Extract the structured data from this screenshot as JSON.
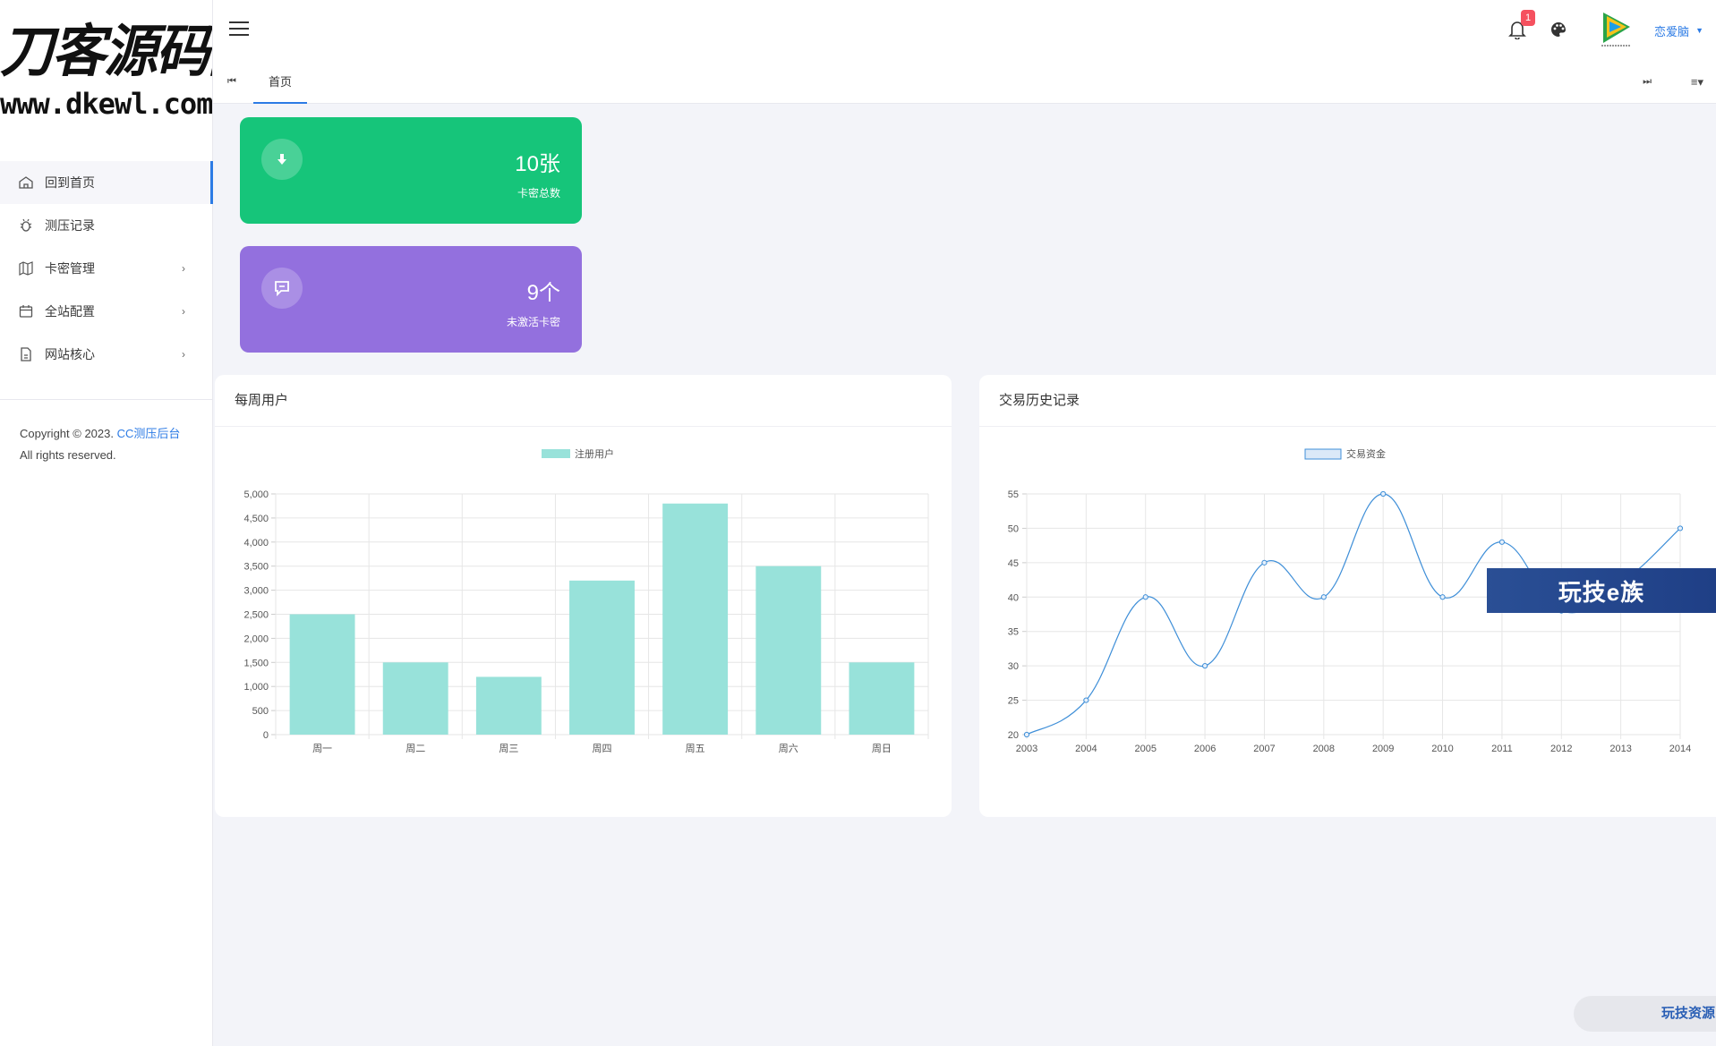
{
  "brand": {
    "name_cn": "刀客源码网",
    "url": "www.dkewl.com"
  },
  "sidebar": {
    "items": [
      {
        "label": "回到首页",
        "icon": "home-icon",
        "active": true,
        "has_arrow": false
      },
      {
        "label": "测压记录",
        "icon": "bug-icon",
        "active": false,
        "has_arrow": false
      },
      {
        "label": "卡密管理",
        "icon": "map-icon",
        "active": false,
        "has_arrow": true
      },
      {
        "label": "全站配置",
        "icon": "calendar-icon",
        "active": false,
        "has_arrow": true
      },
      {
        "label": "网站核心",
        "icon": "file-icon",
        "active": false,
        "has_arrow": true
      }
    ],
    "arrow": "›",
    "copyright_prefix": "Copyright © 2023. ",
    "copyright_link": "CC测压后台",
    "copyright_suffix": "All rights reserved."
  },
  "topbar": {
    "notification_count": "1",
    "user_name": "恋爱脑",
    "caret": "▼"
  },
  "tabs": {
    "first_icon": "⏮",
    "home": "首页",
    "last_icon": "⏭",
    "menu_icon": "≡▾"
  },
  "stats": {
    "total": {
      "value": "10张",
      "label": "卡密总数",
      "color": "#16c57a"
    },
    "inactive": {
      "value": "9个",
      "label": "未激活卡密",
      "color": "#9370de"
    }
  },
  "panels": {
    "weekly_title": "每周用户",
    "history_title": "交易历史记录"
  },
  "chart_data": [
    {
      "type": "bar",
      "categories": [
        "周一",
        "周二",
        "周三",
        "周四",
        "周五",
        "周六",
        "周日"
      ],
      "series": [
        {
          "name": "注册用户",
          "values": [
            2500,
            1500,
            1200,
            3200,
            4800,
            3500,
            1500
          ]
        }
      ],
      "ylim": [
        0,
        5000
      ],
      "yticks": [
        "0",
        "500",
        "1,000",
        "1,500",
        "2,000",
        "2,500",
        "3,000",
        "3,500",
        "4,000",
        "4,500",
        "5,000"
      ],
      "grid": true,
      "legend": "top",
      "color": "#98e2da"
    },
    {
      "type": "line",
      "x": [
        "2003",
        "2004",
        "2005",
        "2006",
        "2007",
        "2008",
        "2009",
        "2010",
        "2011",
        "2012",
        "2013",
        "2014"
      ],
      "series": [
        {
          "name": "交易资金",
          "values": [
            20,
            25,
            40,
            30,
            45,
            40,
            55,
            40,
            48,
            38,
            42,
            50
          ]
        }
      ],
      "ylim": [
        20,
        55
      ],
      "yticks": [
        "20",
        "25",
        "30",
        "35",
        "40",
        "45",
        "50",
        "55"
      ],
      "grid": true,
      "legend": "top",
      "color": "#3f8fd8"
    }
  ],
  "watermarks": {
    "banner": "玩技e族",
    "pill": "玩技资源"
  }
}
